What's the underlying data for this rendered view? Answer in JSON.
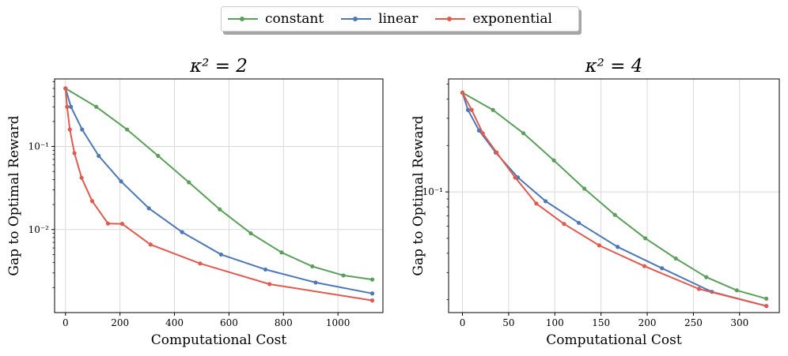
{
  "legend": {
    "items": [
      {
        "label": "constant",
        "color": "#5ba05a"
      },
      {
        "label": "linear",
        "color": "#4c78b5"
      },
      {
        "label": "exponential",
        "color": "#e05a4f"
      }
    ]
  },
  "chart_data": [
    {
      "type": "line",
      "title_text": "κ² = 2",
      "xlabel": "Computational Cost",
      "ylabel": "Gap to Optimal Reward",
      "yscale": "log",
      "xlim": [
        -40,
        1165
      ],
      "ylim": [
        0.001,
        0.65
      ],
      "xticks": [
        0,
        200,
        400,
        600,
        800,
        1000
      ],
      "xtick_labels": [
        "0",
        "200",
        "400",
        "600",
        "800",
        "1000"
      ],
      "yticks": [
        0.1,
        0.01
      ],
      "ytick_labels": [
        "10⁻¹",
        "10⁻²"
      ],
      "grid": true,
      "series": [
        {
          "name": "constant",
          "x": [
            0,
            113,
            226,
            340,
            453,
            566,
            680,
            793,
            906,
            1020,
            1126
          ],
          "y": [
            0.5,
            0.3,
            0.16,
            0.077,
            0.037,
            0.0175,
            0.009,
            0.0053,
            0.0036,
            0.0028,
            0.0025
          ]
        },
        {
          "name": "linear",
          "x": [
            0,
            20,
            61,
            122,
            204,
            306,
            428,
            571,
            734,
            918,
            1126
          ],
          "y": [
            0.5,
            0.3,
            0.16,
            0.077,
            0.038,
            0.018,
            0.0093,
            0.005,
            0.0033,
            0.0023,
            0.0017
          ]
        },
        {
          "name": "exponential",
          "x": [
            0,
            6,
            16,
            33,
            59,
            98,
            156,
            208,
            312,
            494,
            749,
            1126
          ],
          "y": [
            0.5,
            0.3,
            0.16,
            0.083,
            0.042,
            0.022,
            0.0118,
            0.0117,
            0.0066,
            0.0039,
            0.0022,
            0.0014
          ]
        }
      ]
    },
    {
      "type": "line",
      "title_text": "κ² = 4",
      "xlabel": "Computational Cost",
      "ylabel": "Gap to Optimal Reward",
      "yscale": "log",
      "xlim": [
        -15,
        343
      ],
      "ylim": [
        0.0165,
        0.54
      ],
      "xticks": [
        0,
        50,
        100,
        150,
        200,
        250,
        300
      ],
      "xtick_labels": [
        "0",
        "50",
        "100",
        "150",
        "200",
        "250",
        "300"
      ],
      "yticks": [
        0.1
      ],
      "ytick_labels": [
        "10⁻¹"
      ],
      "grid": true,
      "series": [
        {
          "name": "constant",
          "x": [
            0,
            33,
            66,
            99,
            132,
            165,
            198,
            231,
            264,
            297,
            329
          ],
          "y": [
            0.44,
            0.34,
            0.24,
            0.16,
            0.105,
            0.071,
            0.05,
            0.037,
            0.028,
            0.023,
            0.0203
          ]
        },
        {
          "name": "linear",
          "x": [
            0,
            6,
            18,
            36,
            60,
            90,
            126,
            168,
            216,
            270,
            329
          ],
          "y": [
            0.44,
            0.34,
            0.25,
            0.18,
            0.124,
            0.087,
            0.063,
            0.044,
            0.032,
            0.0225,
            0.0182
          ]
        },
        {
          "name": "exponential",
          "x": [
            0,
            10,
            22,
            37,
            57,
            80,
            110,
            148,
            197,
            256,
            329
          ],
          "y": [
            0.44,
            0.34,
            0.24,
            0.18,
            0.124,
            0.084,
            0.062,
            0.045,
            0.033,
            0.0235,
            0.0182
          ]
        }
      ]
    }
  ]
}
